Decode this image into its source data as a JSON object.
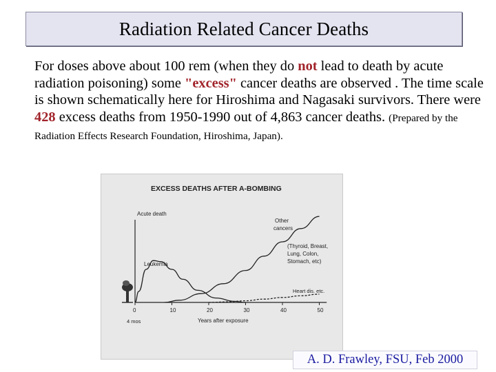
{
  "slide": {
    "title": "Radiation Related Cancer Deaths",
    "body": {
      "part1": "For doses above about 100 rem (when they do ",
      "not": "not",
      "part2": " lead to death by acute radiation poisoning) some ",
      "excess": "\"excess\"",
      "part3": " cancer deaths are observed . The time scale is shown schematically here for Hiroshima and Nagasaki survivors. There were ",
      "num428": "428",
      "part4": " excess deaths from 1950-1990 out of 4,863 cancer deaths. ",
      "note": "(Prepared by the Radiation Effects Research Foundation, Hiroshima, Japan)."
    },
    "credit": "A. D. Frawley, FSU, Feb 2000"
  },
  "figure": {
    "title": "EXCESS DEATHS AFTER A-BOMBING",
    "labels": {
      "acute": "Acute death",
      "leukemia": "Leukemia",
      "other_1": "Other",
      "other_2": "cancers",
      "sites_1": "(Thyroid, Breast,",
      "sites_2": "Lung, Colon,",
      "sites_3": "Stomach, etc)",
      "heart": "Heart dis. etc.",
      "four_mos": "4 mos"
    },
    "xlabel": "Years after exposure",
    "xticks": [
      "0",
      "10",
      "20",
      "30",
      "40",
      "50"
    ]
  },
  "chart_data": {
    "type": "line",
    "title": "EXCESS DEATHS AFTER A-BOMBING",
    "xlabel": "Years after exposure",
    "ylabel": "",
    "xlim": [
      0,
      52
    ],
    "ylim": [
      0,
      1
    ],
    "series": [
      {
        "name": "Leukemia",
        "x": [
          0,
          1,
          3,
          5,
          7,
          10,
          13,
          17,
          22,
          27,
          30
        ],
        "y": [
          0.0,
          0.1,
          0.3,
          0.38,
          0.37,
          0.3,
          0.21,
          0.11,
          0.04,
          0.01,
          0.0
        ]
      },
      {
        "name": "Other cancers",
        "x": [
          8,
          12,
          18,
          24,
          30,
          35,
          40,
          45,
          50
        ],
        "y": [
          0.0,
          0.02,
          0.08,
          0.17,
          0.29,
          0.42,
          0.55,
          0.67,
          0.78
        ]
      },
      {
        "name": "Heart dis. etc.",
        "x": [
          20,
          25,
          30,
          35,
          40,
          45,
          50
        ],
        "y": [
          0.0,
          0.005,
          0.015,
          0.03,
          0.045,
          0.06,
          0.075
        ]
      }
    ]
  }
}
